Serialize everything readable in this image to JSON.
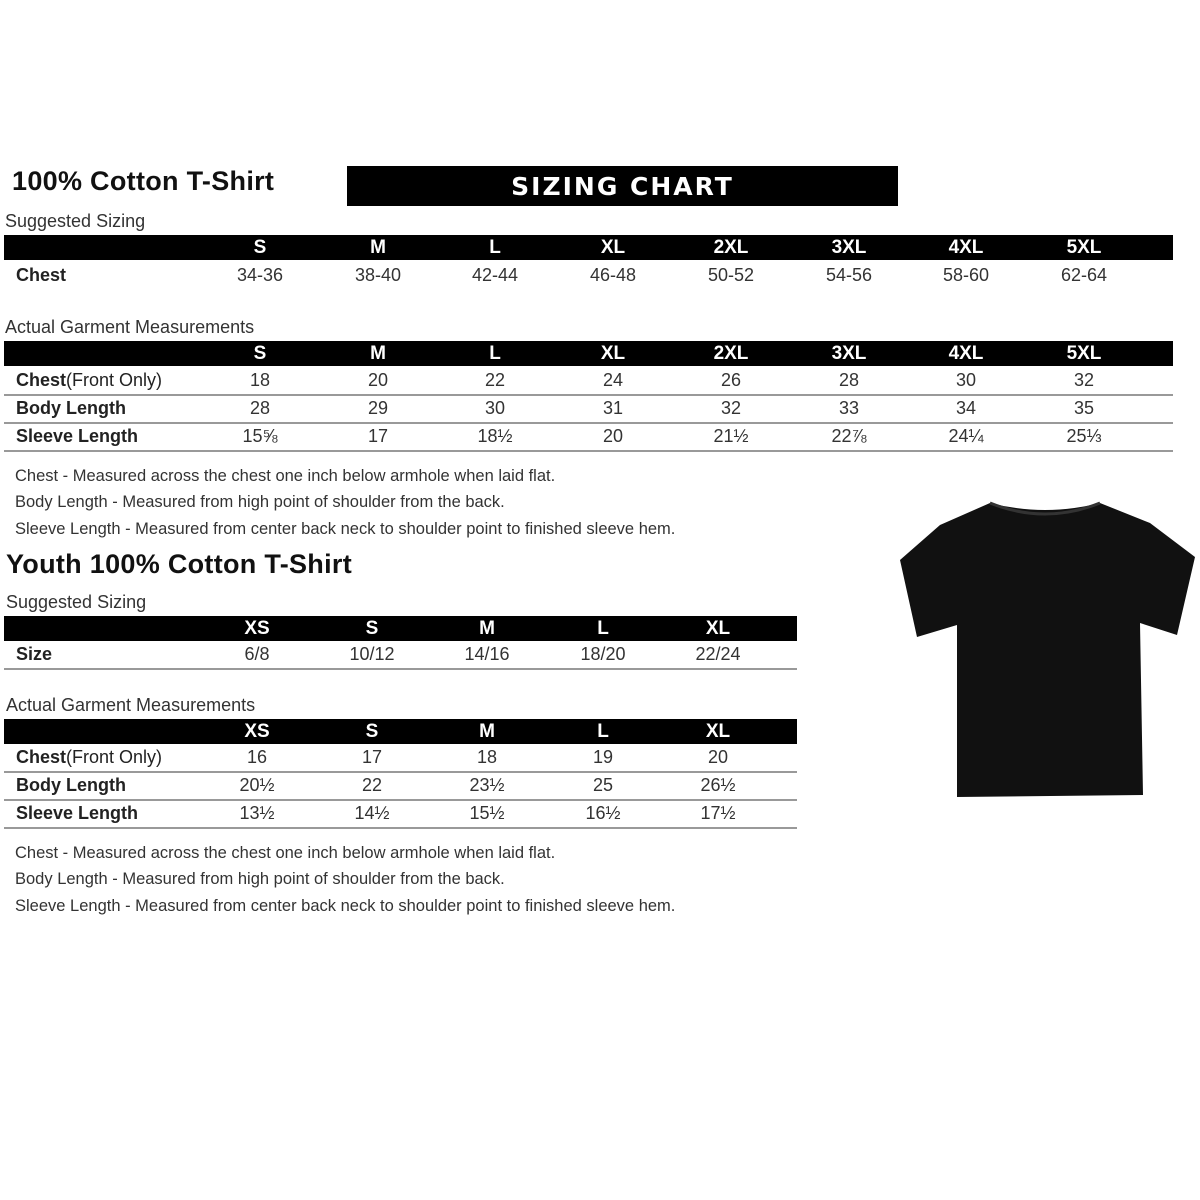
{
  "adult": {
    "title": "100% Cotton T-Shirt",
    "banner": "SIZING CHART",
    "suggested_label": "Suggested Sizing",
    "sizes": [
      "S",
      "M",
      "L",
      "XL",
      "2XL",
      "3XL",
      "4XL",
      "5XL"
    ],
    "suggested_rows": [
      {
        "label": "Chest",
        "values": [
          "34-36",
          "38-40",
          "42-44",
          "46-48",
          "50-52",
          "54-56",
          "58-60",
          "62-64"
        ]
      }
    ],
    "actual_label": "Actual Garment Measurements",
    "actual_rows": [
      {
        "label": "Chest",
        "label_suffix": " (Front Only)",
        "values": [
          "18",
          "20",
          "22",
          "24",
          "26",
          "28",
          "30",
          "32"
        ]
      },
      {
        "label": "Body Length",
        "label_suffix": "",
        "values": [
          "28",
          "29",
          "30",
          "31",
          "32",
          "33",
          "34",
          "35"
        ]
      },
      {
        "label": "Sleeve Length",
        "label_suffix": "",
        "values": [
          "15⅝",
          "17",
          "18½",
          "20",
          "21½",
          "22⅞",
          "24¼",
          "25⅓"
        ]
      }
    ],
    "notes": [
      "Chest - Measured across the chest one inch below armhole when laid flat.",
      "Body Length - Measured from high point of shoulder from the back.",
      "Sleeve Length - Measured from center back neck to shoulder point to finished sleeve hem."
    ]
  },
  "youth": {
    "title": "Youth 100% Cotton T-Shirt",
    "suggested_label": "Suggested Sizing",
    "sizes": [
      "XS",
      "S",
      "M",
      "L",
      "XL"
    ],
    "suggested_rows": [
      {
        "label": "Size",
        "values": [
          "6/8",
          "10/12",
          "14/16",
          "18/20",
          "22/24"
        ]
      }
    ],
    "actual_label": "Actual Garment Measurements",
    "actual_rows": [
      {
        "label": "Chest",
        "label_suffix": " (Front Only)",
        "values": [
          "16",
          "17",
          "18",
          "19",
          "20"
        ]
      },
      {
        "label": "Body Length",
        "label_suffix": "",
        "values": [
          "20½",
          "22",
          "23½",
          "25",
          "26½"
        ]
      },
      {
        "label": "Sleeve Length",
        "label_suffix": "",
        "values": [
          "13½",
          "14½",
          "15½",
          "16½",
          "17½"
        ]
      }
    ],
    "notes": [
      "Chest - Measured across the chest one inch below armhole when laid flat.",
      "Body Length - Measured from high point of shoulder from the back.",
      "Sleeve Length - Measured from center back neck to shoulder point to finished sleeve hem."
    ]
  },
  "tshirt_color": "#111111"
}
